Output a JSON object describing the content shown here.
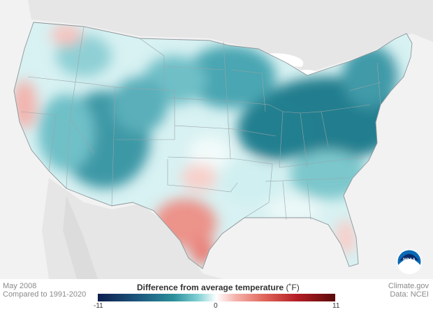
{
  "map": {
    "period": "May 2008",
    "baseline": "Compared to 1991-2020",
    "credit": "Climate.gov",
    "source": "Data: NCEI",
    "logo_text": "NOAA"
  },
  "legend": {
    "title": "Difference from average temperature",
    "unit": "(˚F)",
    "min_label": "-11",
    "mid_label": "0",
    "max_label": "11",
    "range": [
      -11,
      11
    ]
  },
  "colors": {
    "cool": "#2b8f9a",
    "neutral": "#ffffff",
    "warm": "#e0665c"
  }
}
